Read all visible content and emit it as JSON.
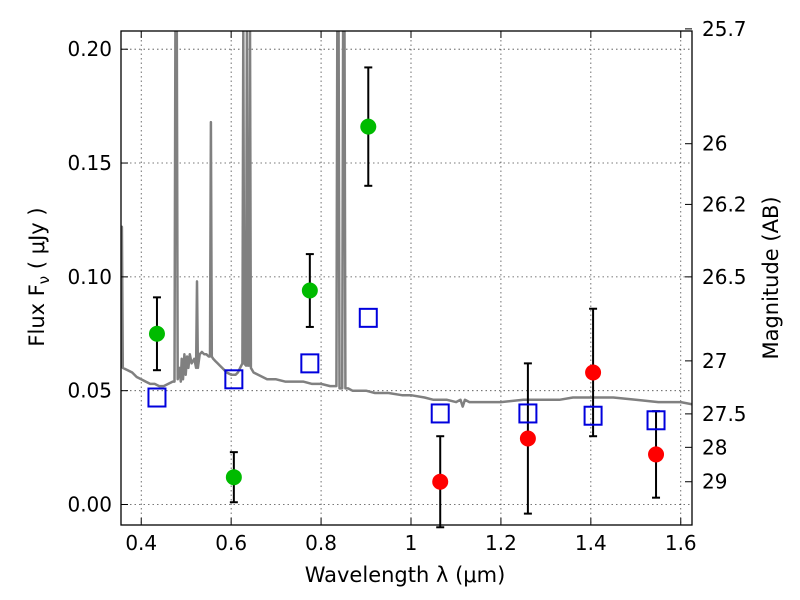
{
  "chart_data": {
    "type": "scatter",
    "xlabel": "Wavelength  λ (μm)",
    "ylabel_left": "Flux  F",
    "ylabel_left_sub": "ν",
    "ylabel_left_unit": " ( μJy )",
    "ylabel_right": "Magnitude (AB)",
    "xlim": [
      0.355,
      1.625
    ],
    "ylim": [
      -0.009,
      0.208
    ],
    "grid": true,
    "x_ticks": [
      {
        "value": 0.4,
        "label": "0.4"
      },
      {
        "value": 0.6,
        "label": "0.6"
      },
      {
        "value": 0.8,
        "label": "0.8"
      },
      {
        "value": 1.0,
        "label": "1"
      },
      {
        "value": 1.2,
        "label": "1.2"
      },
      {
        "value": 1.4,
        "label": "1.4"
      },
      {
        "value": 1.6,
        "label": "1.6"
      }
    ],
    "y_ticks": [
      {
        "value": 0.0,
        "label": "0.00"
      },
      {
        "value": 0.05,
        "label": "0.05"
      },
      {
        "value": 0.1,
        "label": "0.10"
      },
      {
        "value": 0.15,
        "label": "0.15"
      },
      {
        "value": 0.2,
        "label": "0.20"
      }
    ],
    "magnitude_ticks": [
      {
        "value": 25.7,
        "label": "25.7"
      },
      {
        "value": 26.0,
        "label": "26"
      },
      {
        "value": 26.2,
        "label": "26.2"
      },
      {
        "value": 26.5,
        "label": "26.5"
      },
      {
        "value": 27.0,
        "label": "27"
      },
      {
        "value": 27.5,
        "label": "27.5"
      },
      {
        "value": 28.0,
        "label": "28"
      },
      {
        "value": 29.0,
        "label": "29"
      }
    ],
    "series": [
      {
        "marker": "circle",
        "color": "#00bb00",
        "points": [
          {
            "x": 0.435,
            "y": 0.075,
            "err": 0.016
          },
          {
            "x": 0.606,
            "y": 0.012,
            "err": 0.011
          },
          {
            "x": 0.775,
            "y": 0.094,
            "err": 0.016
          },
          {
            "x": 0.905,
            "y": 0.166,
            "err": 0.026
          }
        ]
      },
      {
        "marker": "circle",
        "color": "#ff0000",
        "points": [
          {
            "x": 1.065,
            "y": 0.01,
            "err": 0.02
          },
          {
            "x": 1.26,
            "y": 0.029,
            "err": 0.033
          },
          {
            "x": 1.405,
            "y": 0.058,
            "err": 0.028
          },
          {
            "x": 1.545,
            "y": 0.022,
            "err": 0.019
          }
        ]
      },
      {
        "marker": "open-square",
        "color": "#0000dd",
        "points": [
          {
            "x": 0.435,
            "y": 0.047
          },
          {
            "x": 0.606,
            "y": 0.055
          },
          {
            "x": 0.775,
            "y": 0.062
          },
          {
            "x": 0.905,
            "y": 0.082
          },
          {
            "x": 1.065,
            "y": 0.04
          },
          {
            "x": 1.26,
            "y": 0.04
          },
          {
            "x": 1.405,
            "y": 0.039
          },
          {
            "x": 1.545,
            "y": 0.037
          }
        ]
      }
    ],
    "model_spectrum": {
      "color": "#808080",
      "points": [
        [
          0.355,
          0.06
        ],
        [
          0.357,
          0.122
        ],
        [
          0.359,
          0.06
        ],
        [
          0.37,
          0.059
        ],
        [
          0.38,
          0.058
        ],
        [
          0.39,
          0.056
        ],
        [
          0.4,
          0.055
        ],
        [
          0.41,
          0.054
        ],
        [
          0.42,
          0.053
        ],
        [
          0.43,
          0.053
        ],
        [
          0.44,
          0.052
        ],
        [
          0.45,
          0.052
        ],
        [
          0.46,
          0.053
        ],
        [
          0.47,
          0.054
        ],
        [
          0.474,
          0.054
        ],
        [
          0.476,
          0.21
        ],
        [
          0.479,
          0.21
        ],
        [
          0.481,
          0.055
        ],
        [
          0.485,
          0.06
        ],
        [
          0.488,
          0.054
        ],
        [
          0.49,
          0.064
        ],
        [
          0.493,
          0.055
        ],
        [
          0.496,
          0.066
        ],
        [
          0.499,
          0.057
        ],
        [
          0.502,
          0.065
        ],
        [
          0.505,
          0.06
        ],
        [
          0.508,
          0.066
        ],
        [
          0.512,
          0.062
        ],
        [
          0.518,
          0.064
        ],
        [
          0.522,
          0.06
        ],
        [
          0.524,
          0.098
        ],
        [
          0.526,
          0.06
        ],
        [
          0.53,
          0.066
        ],
        [
          0.535,
          0.067
        ],
        [
          0.54,
          0.066
        ],
        [
          0.545,
          0.066
        ],
        [
          0.55,
          0.065
        ],
        [
          0.553,
          0.065
        ],
        [
          0.555,
          0.168
        ],
        [
          0.557,
          0.065
        ],
        [
          0.56,
          0.064
        ],
        [
          0.565,
          0.063
        ],
        [
          0.57,
          0.062
        ],
        [
          0.575,
          0.061
        ],
        [
          0.58,
          0.06
        ],
        [
          0.59,
          0.058
        ],
        [
          0.6,
          0.057
        ],
        [
          0.61,
          0.057
        ],
        [
          0.615,
          0.058
        ],
        [
          0.62,
          0.06
        ],
        [
          0.625,
          0.062
        ],
        [
          0.627,
          0.21
        ],
        [
          0.629,
          0.062
        ],
        [
          0.633,
          0.061
        ],
        [
          0.635,
          0.21
        ],
        [
          0.637,
          0.061
        ],
        [
          0.64,
          0.061
        ],
        [
          0.642,
          0.21
        ],
        [
          0.644,
          0.06
        ],
        [
          0.65,
          0.058
        ],
        [
          0.66,
          0.057
        ],
        [
          0.67,
          0.056
        ],
        [
          0.68,
          0.055
        ],
        [
          0.7,
          0.055
        ],
        [
          0.72,
          0.054
        ],
        [
          0.74,
          0.054
        ],
        [
          0.76,
          0.054
        ],
        [
          0.78,
          0.053
        ],
        [
          0.8,
          0.053
        ],
        [
          0.82,
          0.052
        ],
        [
          0.834,
          0.052
        ],
        [
          0.836,
          0.21
        ],
        [
          0.839,
          0.21
        ],
        [
          0.841,
          0.051
        ],
        [
          0.847,
          0.051
        ],
        [
          0.849,
          0.21
        ],
        [
          0.852,
          0.21
        ],
        [
          0.854,
          0.051
        ],
        [
          0.86,
          0.051
        ],
        [
          0.87,
          0.05
        ],
        [
          0.88,
          0.05
        ],
        [
          0.9,
          0.05
        ],
        [
          0.92,
          0.049
        ],
        [
          0.95,
          0.049
        ],
        [
          0.98,
          0.048
        ],
        [
          1.0,
          0.048
        ],
        [
          1.03,
          0.047
        ],
        [
          1.05,
          0.046
        ],
        [
          1.08,
          0.046
        ],
        [
          1.1,
          0.045
        ],
        [
          1.11,
          0.046
        ],
        [
          1.115,
          0.043
        ],
        [
          1.12,
          0.046
        ],
        [
          1.13,
          0.045
        ],
        [
          1.15,
          0.045
        ],
        [
          1.18,
          0.045
        ],
        [
          1.2,
          0.045
        ],
        [
          1.25,
          0.046
        ],
        [
          1.28,
          0.046
        ],
        [
          1.3,
          0.046
        ],
        [
          1.33,
          0.046
        ],
        [
          1.36,
          0.047
        ],
        [
          1.4,
          0.047
        ],
        [
          1.45,
          0.047
        ],
        [
          1.5,
          0.046
        ],
        [
          1.55,
          0.045
        ],
        [
          1.6,
          0.045
        ],
        [
          1.625,
          0.044
        ]
      ]
    }
  }
}
